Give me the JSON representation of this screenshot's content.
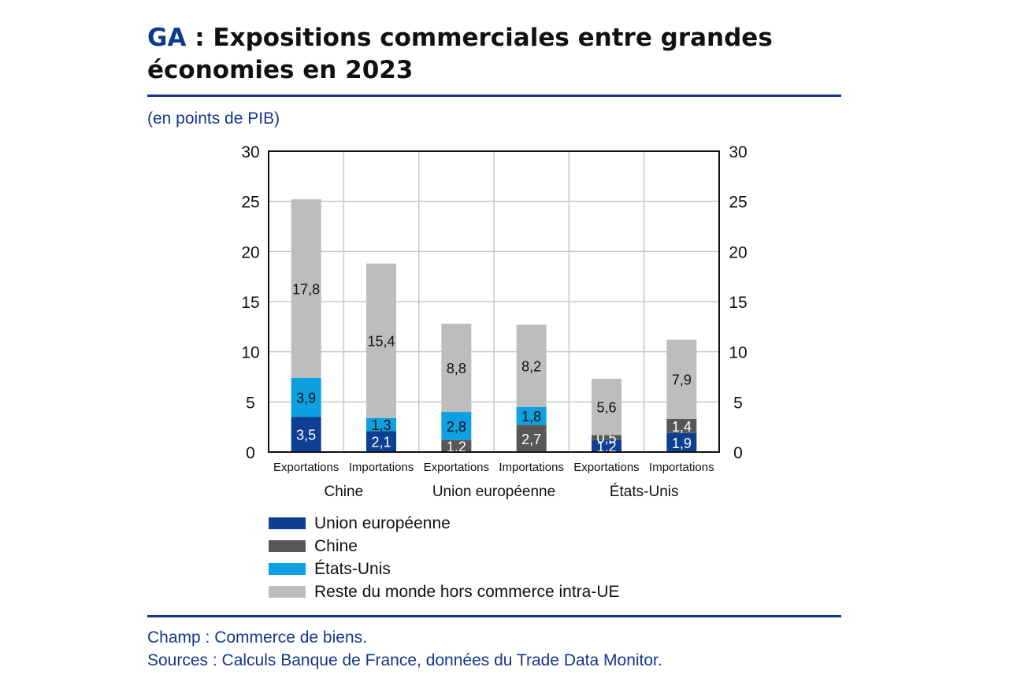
{
  "header": {
    "code": "GA",
    "title_rest": " : Expositions commerciales entre grandes économies en 2023"
  },
  "unit_label": "(en points de PIB)",
  "footnotes": {
    "scope": "Champ : Commerce de biens.",
    "sources": "Sources : Calculs Banque de France, données du Trade Data Monitor."
  },
  "chart_data": {
    "type": "bar",
    "stacked": true,
    "ylim": [
      0,
      30
    ],
    "yticks": [
      0,
      5,
      10,
      15,
      20,
      25,
      30
    ],
    "grid": true,
    "legend_position": "bottom",
    "categories": [
      "Exportations",
      "Importations",
      "Exportations",
      "Importations",
      "Exportations",
      "Importations"
    ],
    "groups": [
      {
        "label": "Chine",
        "categories": [
          "Exportations",
          "Importations"
        ]
      },
      {
        "label": "Union européenne",
        "categories": [
          "Exportations",
          "Importations"
        ]
      },
      {
        "label": "États-Unis",
        "categories": [
          "Exportations",
          "Importations"
        ]
      }
    ],
    "series": [
      {
        "name": "Union européenne",
        "color": "#0d3f92",
        "label_color": "#ffffff",
        "values": [
          3.5,
          2.1,
          null,
          null,
          1.2,
          1.9
        ],
        "labels": [
          "3,5",
          "2,1",
          "",
          "",
          "1,2",
          "1,9"
        ]
      },
      {
        "name": "Chine",
        "color": "#575757",
        "label_color": "#ffffff",
        "values": [
          null,
          null,
          1.2,
          2.7,
          0.5,
          1.4
        ],
        "labels": [
          "",
          "",
          "1,2",
          "2,7",
          "0,5",
          "1,4"
        ]
      },
      {
        "name": "États-Unis",
        "color": "#0ea0e0",
        "label_color": "#111111",
        "values": [
          3.9,
          1.3,
          2.8,
          1.8,
          null,
          null
        ],
        "labels": [
          "3,9",
          "1,3",
          "2,8",
          "1,8",
          "",
          ""
        ]
      },
      {
        "name": "Reste du monde hors commerce intra-UE",
        "color": "#bdbdbd",
        "label_color": "#111111",
        "values": [
          17.8,
          15.4,
          8.8,
          8.2,
          5.6,
          7.9
        ],
        "labels": [
          "17,8",
          "15,4",
          "8,8",
          "8,2",
          "5,6",
          "7,9"
        ]
      }
    ]
  }
}
